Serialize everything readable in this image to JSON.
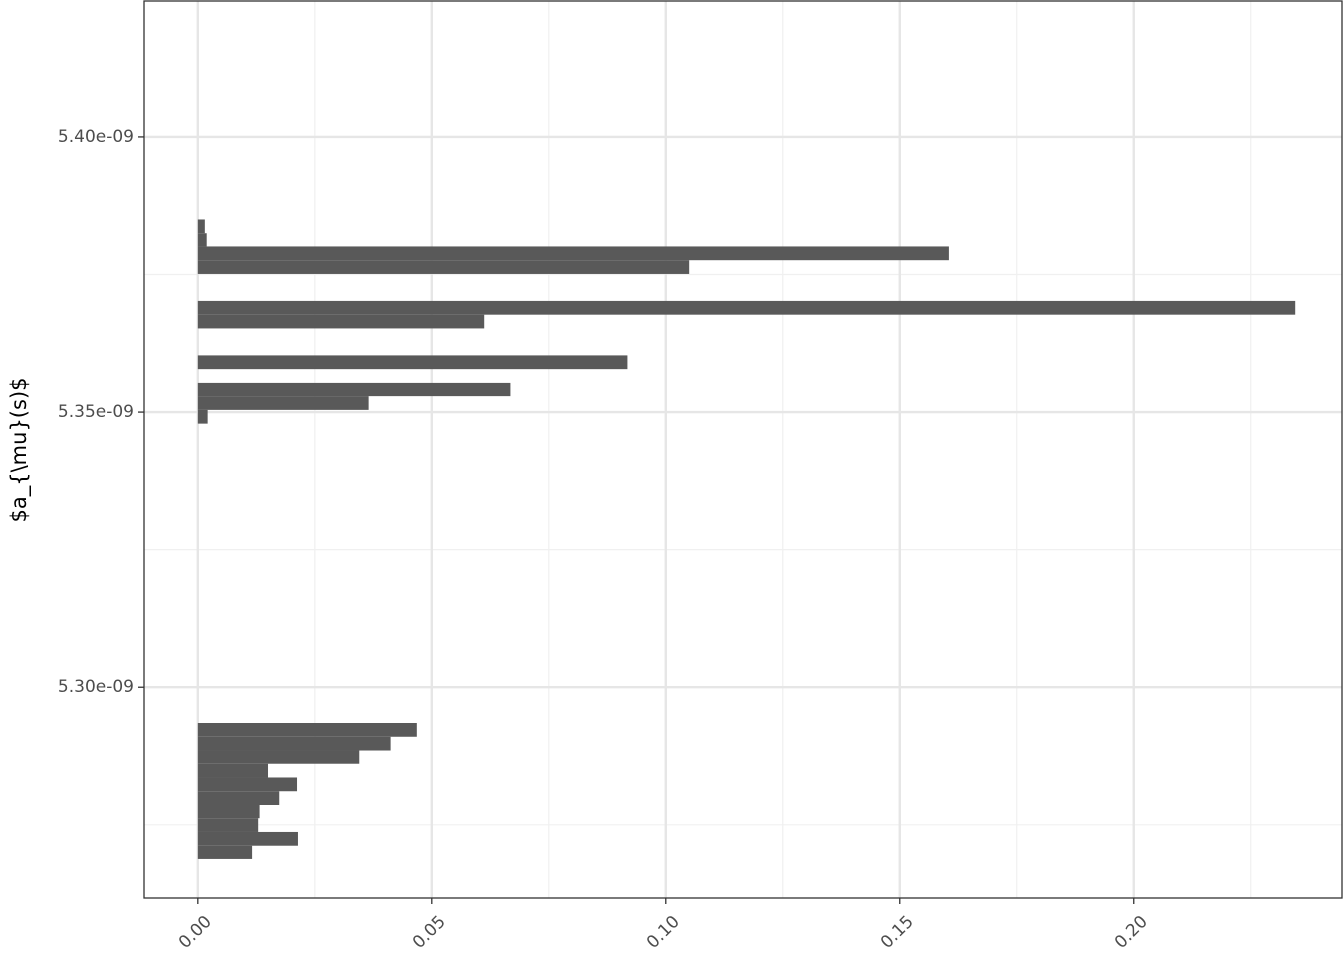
{
  "chart_data": {
    "type": "bar",
    "orientation": "horizontal",
    "title": "",
    "xlabel": "",
    "ylabel": "$a_{\\mu}(s)$",
    "xlim": [
      -0.0115,
      0.2445
    ],
    "ylim": [
      5.2617e-09,
      5.4247e-09
    ],
    "x_ticks": [
      0.0,
      0.05,
      0.1,
      0.15,
      0.2
    ],
    "x_tick_labels": [
      "0.00",
      "0.05",
      "0.10",
      "0.15",
      "0.20"
    ],
    "y_ticks": [
      5.3e-09,
      5.35e-09,
      5.4e-09
    ],
    "y_tick_labels": [
      "5.30e-09",
      "5.35e-09",
      "5.40e-09"
    ],
    "grid": true,
    "legend": "none",
    "bar_color": "#595959",
    "bins": [
      {
        "y_start": 5.2688e-09,
        "y_end": 5.2712e-09,
        "value": 0.0116
      },
      {
        "y_start": 5.2712e-09,
        "y_end": 5.2737e-09,
        "value": 0.0214
      },
      {
        "y_start": 5.2737e-09,
        "y_end": 5.2762e-09,
        "value": 0.0129
      },
      {
        "y_start": 5.2762e-09,
        "y_end": 5.2786e-09,
        "value": 0.0132
      },
      {
        "y_start": 5.2786e-09,
        "y_end": 5.2811e-09,
        "value": 0.0174
      },
      {
        "y_start": 5.2811e-09,
        "y_end": 5.2836e-09,
        "value": 0.0212
      },
      {
        "y_start": 5.2836e-09,
        "y_end": 5.2861e-09,
        "value": 0.015
      },
      {
        "y_start": 5.2861e-09,
        "y_end": 5.2885e-09,
        "value": 0.0345
      },
      {
        "y_start": 5.2885e-09,
        "y_end": 5.291e-09,
        "value": 0.0412
      },
      {
        "y_start": 5.291e-09,
        "y_end": 5.2935e-09,
        "value": 0.0468
      },
      {
        "y_start": 5.3479e-09,
        "y_end": 5.3504e-09,
        "value": 0.0021
      },
      {
        "y_start": 5.3504e-09,
        "y_end": 5.3529e-09,
        "value": 0.0365
      },
      {
        "y_start": 5.3529e-09,
        "y_end": 5.3553e-09,
        "value": 0.0668
      },
      {
        "y_start": 5.3578e-09,
        "y_end": 5.3603e-09,
        "value": 0.0918
      },
      {
        "y_start": 5.3652e-09,
        "y_end": 5.3677e-09,
        "value": 0.0612
      },
      {
        "y_start": 5.3677e-09,
        "y_end": 5.3702e-09,
        "value": 0.2345
      },
      {
        "y_start": 5.3751e-09,
        "y_end": 5.3776e-09,
        "value": 0.105
      },
      {
        "y_start": 5.3776e-09,
        "y_end": 5.3801e-09,
        "value": 0.1605
      },
      {
        "y_start": 5.3801e-09,
        "y_end": 5.3825e-09,
        "value": 0.0019
      },
      {
        "y_start": 5.3825e-09,
        "y_end": 5.385e-09,
        "value": 0.0015
      }
    ]
  }
}
